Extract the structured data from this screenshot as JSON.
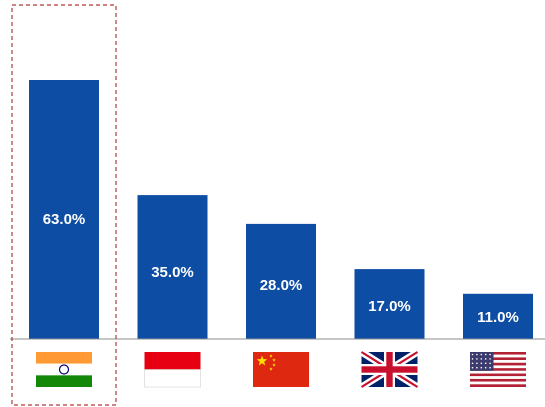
{
  "chart_data": {
    "type": "bar",
    "categories": [
      "India",
      "Indonesia",
      "China",
      "United Kingdom",
      "United States"
    ],
    "values": [
      63.0,
      35.0,
      28.0,
      17.0,
      11.0
    ],
    "value_labels": [
      "63.0%",
      "35.0%",
      "28.0%",
      "17.0%",
      "11.0%"
    ],
    "category_icons": [
      "flag-india-icon",
      "flag-indonesia-icon",
      "flag-china-icon",
      "flag-uk-icon",
      "flag-usa-icon"
    ],
    "highlighted_category": "India",
    "bar_color": "#0E4DA4",
    "highlight_border_color": "#B03A3A",
    "title": "",
    "xlabel": "",
    "ylabel": "",
    "ylim": [
      0,
      70
    ],
    "grid": false,
    "legend": "none"
  }
}
